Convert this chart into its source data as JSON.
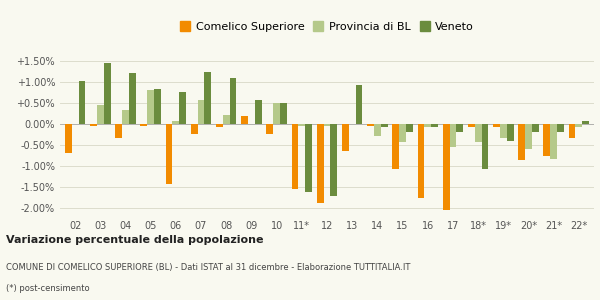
{
  "categories": [
    "02",
    "03",
    "04",
    "05",
    "06",
    "07",
    "08",
    "09",
    "10",
    "11*",
    "12",
    "13",
    "14",
    "15",
    "16",
    "17",
    "18*",
    "19*",
    "20*",
    "21*",
    "22*"
  ],
  "comelico": [
    -0.007,
    -0.0005,
    -0.0035,
    -0.0005,
    -0.0145,
    -0.0025,
    -0.0007,
    0.0018,
    -0.0025,
    -0.0155,
    -0.019,
    -0.0065,
    -0.0005,
    -0.0107,
    -0.0178,
    -0.0205,
    -0.0007,
    -0.0007,
    -0.0087,
    -0.0077,
    -0.0035
  ],
  "provincia": [
    -0.0002,
    0.0045,
    0.0032,
    0.008,
    0.0006,
    0.0057,
    0.002,
    -0.0002,
    0.005,
    -0.0005,
    -0.0005,
    -0.0002,
    -0.003,
    -0.0045,
    -0.0007,
    -0.0055,
    -0.0045,
    -0.0035,
    -0.006,
    -0.0085,
    -0.0008
  ],
  "veneto": [
    0.0102,
    0.0145,
    0.012,
    0.0082,
    0.0075,
    0.0122,
    0.0108,
    0.0055,
    0.005,
    -0.0162,
    -0.0173,
    0.0093,
    -0.0008,
    -0.002,
    -0.0008,
    -0.002,
    -0.0108,
    -0.0042,
    -0.002,
    -0.002,
    0.0005
  ],
  "color_comelico": "#f28b00",
  "color_provincia": "#b5c98a",
  "color_veneto": "#6b8c3e",
  "title": "Variazione percentuale della popolazione",
  "subtitle": "COMUNE DI COMELICO SUPERIORE (BL) - Dati ISTAT al 31 dicembre - Elaborazione TUTTITALIA.IT",
  "footnote": "(*) post-censimento",
  "ylim": [
    -0.022,
    0.018
  ],
  "yticks": [
    -0.02,
    -0.015,
    -0.01,
    -0.005,
    0.0,
    0.005,
    0.01,
    0.015
  ],
  "ytick_labels": [
    "-2.00%",
    "-1.50%",
    "-1.00%",
    "-0.50%",
    "0.00%",
    "+0.50%",
    "+1.00%",
    "+1.50%"
  ],
  "bg_color": "#f9f9f0",
  "grid_color": "#ddddcc"
}
